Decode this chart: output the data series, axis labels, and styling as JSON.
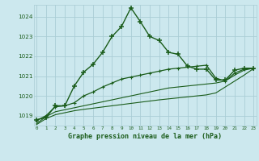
{
  "xlabel": "Graphe pression niveau de la mer (hPa)",
  "background_color": "#cce8ee",
  "grid_color": "#aacdd5",
  "line_color": "#1a5c1a",
  "x_ticks": [
    0,
    1,
    2,
    3,
    4,
    5,
    6,
    7,
    8,
    9,
    10,
    11,
    12,
    13,
    14,
    15,
    16,
    17,
    18,
    19,
    20,
    21,
    22,
    23
  ],
  "ylim": [
    1018.5,
    1024.6
  ],
  "xlim": [
    -0.3,
    23.3
  ],
  "yticks": [
    1019,
    1020,
    1021,
    1022,
    1023,
    1024
  ],
  "series1": [
    1018.8,
    1018.9,
    1019.5,
    1019.5,
    1020.5,
    1021.2,
    1021.6,
    1022.2,
    1023.0,
    1023.5,
    1024.45,
    1023.75,
    1023.0,
    1022.8,
    1022.2,
    1022.1,
    1021.5,
    1021.35,
    1021.35,
    1020.8,
    1020.8,
    1021.3,
    1021.4,
    1021.4
  ],
  "series2": [
    1018.75,
    1019.0,
    1019.45,
    1019.5,
    1019.65,
    1020.0,
    1020.2,
    1020.45,
    1020.65,
    1020.85,
    1020.95,
    1021.05,
    1021.15,
    1021.25,
    1021.35,
    1021.4,
    1021.45,
    1021.5,
    1021.55,
    1020.9,
    1020.75,
    1021.15,
    1021.35,
    1021.4
  ],
  "series3": [
    1018.6,
    1018.95,
    1019.2,
    1019.3,
    1019.4,
    1019.5,
    1019.6,
    1019.7,
    1019.8,
    1019.9,
    1020.0,
    1020.1,
    1020.2,
    1020.3,
    1020.4,
    1020.45,
    1020.5,
    1020.55,
    1020.6,
    1020.65,
    1020.75,
    1021.05,
    1021.3,
    1021.4
  ],
  "series4": [
    1018.55,
    1018.85,
    1019.05,
    1019.15,
    1019.25,
    1019.32,
    1019.38,
    1019.44,
    1019.5,
    1019.56,
    1019.62,
    1019.68,
    1019.74,
    1019.8,
    1019.85,
    1019.9,
    1019.95,
    1020.0,
    1020.05,
    1020.15,
    1020.45,
    1020.75,
    1021.05,
    1021.38
  ]
}
